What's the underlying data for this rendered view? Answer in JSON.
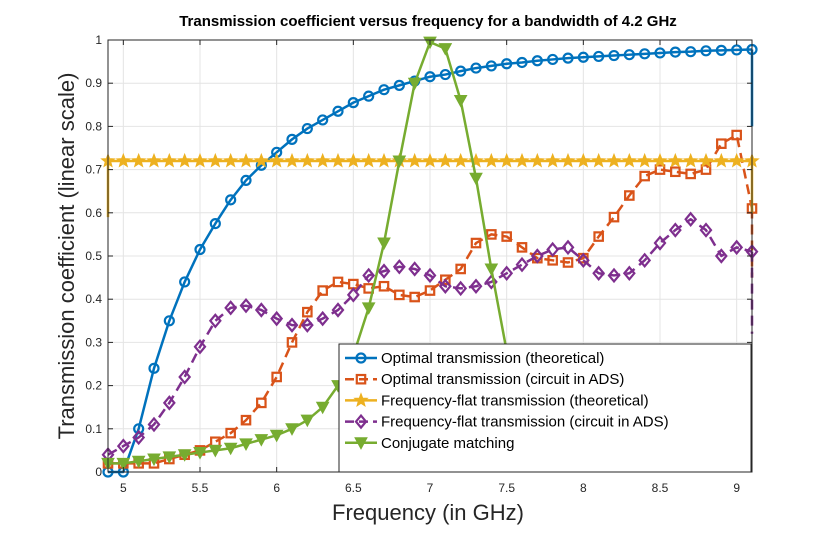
{
  "chart_data": {
    "type": "line",
    "title": "Transmission coefficient versus frequency for a bandwidth of 4.2 GHz",
    "xlabel": "Frequency (in GHz)",
    "ylabel": "Transmission coefficient (linear scale)",
    "xlim": [
      4.9,
      9.1
    ],
    "ylim": [
      0,
      1
    ],
    "xticks": [
      5,
      5.5,
      6,
      6.5,
      7,
      7.5,
      8,
      8.5,
      9
    ],
    "xtick_labels": [
      "5",
      "5.5",
      "6",
      "6.5",
      "7",
      "7.5",
      "8",
      "8.5",
      "9"
    ],
    "yticks": [
      0,
      0.1,
      0.2,
      0.3,
      0.4,
      0.5,
      0.6,
      0.7,
      0.8,
      0.9,
      1
    ],
    "ytick_labels": [
      "0",
      "0.1",
      "0.2",
      "0.3",
      "0.4",
      "0.5",
      "0.6",
      "0.7",
      "0.8",
      "0.9",
      "1"
    ],
    "grid": true,
    "legend_position": "bottom-right",
    "series": [
      {
        "name": "Optimal transmission (theoretical)",
        "color": "#0072BD",
        "marker": "circle",
        "dash": "solid",
        "x": [
          4.9,
          5.0,
          5.1,
          5.2,
          5.3,
          5.4,
          5.5,
          5.6,
          5.7,
          5.8,
          5.9,
          6.0,
          6.1,
          6.2,
          6.3,
          6.4,
          6.5,
          6.6,
          6.7,
          6.8,
          6.9,
          7.0,
          7.1,
          7.2,
          7.3,
          7.4,
          7.5,
          7.6,
          7.7,
          7.8,
          7.9,
          8.0,
          8.1,
          8.2,
          8.3,
          8.4,
          8.5,
          8.6,
          8.7,
          8.8,
          8.9,
          9.0,
          9.1
        ],
        "y": [
          0.0,
          0.0,
          0.1,
          0.24,
          0.35,
          0.44,
          0.515,
          0.575,
          0.63,
          0.675,
          0.71,
          0.74,
          0.77,
          0.795,
          0.815,
          0.835,
          0.855,
          0.87,
          0.885,
          0.895,
          0.905,
          0.915,
          0.92,
          0.928,
          0.935,
          0.94,
          0.945,
          0.948,
          0.952,
          0.955,
          0.958,
          0.96,
          0.962,
          0.964,
          0.966,
          0.968,
          0.97,
          0.972,
          0.973,
          0.975,
          0.976,
          0.977,
          0.978
        ],
        "tail": {
          "x": [
            9.1,
            9.1
          ],
          "y": [
            0.978,
            0.8
          ]
        }
      },
      {
        "name": "Optimal transmission (circuit in ADS)",
        "color": "#D95319",
        "marker": "square",
        "dash": "dashed",
        "x": [
          4.9,
          5.0,
          5.1,
          5.2,
          5.3,
          5.4,
          5.5,
          5.6,
          5.7,
          5.8,
          5.9,
          6.0,
          6.1,
          6.2,
          6.3,
          6.4,
          6.5,
          6.6,
          6.7,
          6.8,
          6.9,
          7.0,
          7.1,
          7.2,
          7.3,
          7.4,
          7.5,
          7.6,
          7.7,
          7.8,
          7.9,
          8.0,
          8.1,
          8.2,
          8.3,
          8.4,
          8.5,
          8.6,
          8.7,
          8.8,
          8.9,
          9.0,
          9.1
        ],
        "y": [
          0.02,
          0.02,
          0.02,
          0.02,
          0.03,
          0.04,
          0.05,
          0.07,
          0.09,
          0.12,
          0.16,
          0.22,
          0.3,
          0.37,
          0.42,
          0.44,
          0.435,
          0.425,
          0.43,
          0.41,
          0.405,
          0.42,
          0.445,
          0.47,
          0.53,
          0.55,
          0.545,
          0.52,
          0.495,
          0.49,
          0.485,
          0.495,
          0.545,
          0.59,
          0.64,
          0.685,
          0.7,
          0.695,
          0.69,
          0.7,
          0.76,
          0.78,
          0.61
        ],
        "tail": {
          "x": [
            9.1,
            9.1
          ],
          "y": [
            0.61,
            0.45
          ]
        }
      },
      {
        "name": "Frequency-flat transmission (theoretical)",
        "color": "#EDB120",
        "marker": "star",
        "dash": "solid",
        "x": [
          4.9,
          5.0,
          5.1,
          5.2,
          5.3,
          5.4,
          5.5,
          5.6,
          5.7,
          5.8,
          5.9,
          6.0,
          6.1,
          6.2,
          6.3,
          6.4,
          6.5,
          6.6,
          6.7,
          6.8,
          6.9,
          7.0,
          7.1,
          7.2,
          7.3,
          7.4,
          7.5,
          7.6,
          7.7,
          7.8,
          7.9,
          8.0,
          8.1,
          8.2,
          8.3,
          8.4,
          8.5,
          8.6,
          8.7,
          8.8,
          8.9,
          9.0,
          9.1
        ],
        "y": [
          0.72,
          0.72,
          0.72,
          0.72,
          0.72,
          0.72,
          0.72,
          0.72,
          0.72,
          0.72,
          0.72,
          0.72,
          0.72,
          0.72,
          0.72,
          0.72,
          0.72,
          0.72,
          0.72,
          0.72,
          0.72,
          0.72,
          0.72,
          0.72,
          0.72,
          0.72,
          0.72,
          0.72,
          0.72,
          0.72,
          0.72,
          0.72,
          0.72,
          0.72,
          0.72,
          0.72,
          0.72,
          0.72,
          0.72,
          0.72,
          0.72,
          0.72,
          0.72
        ],
        "head": {
          "x": [
            4.9,
            4.9
          ],
          "y": [
            0.59,
            0.72
          ]
        },
        "tail": {
          "x": [
            9.1,
            9.1
          ],
          "y": [
            0.72,
            0.6
          ]
        }
      },
      {
        "name": "Frequency-flat transmission (circuit in ADS)",
        "color": "#7E2F8E",
        "marker": "diamond",
        "dash": "dashed",
        "x": [
          4.9,
          5.0,
          5.1,
          5.2,
          5.3,
          5.4,
          5.5,
          5.6,
          5.7,
          5.8,
          5.9,
          6.0,
          6.1,
          6.2,
          6.3,
          6.4,
          6.5,
          6.6,
          6.7,
          6.8,
          6.9,
          7.0,
          7.1,
          7.2,
          7.3,
          7.4,
          7.5,
          7.6,
          7.7,
          7.8,
          7.9,
          8.0,
          8.1,
          8.2,
          8.3,
          8.4,
          8.5,
          8.6,
          8.7,
          8.8,
          8.9,
          9.0,
          9.1
        ],
        "y": [
          0.04,
          0.06,
          0.08,
          0.11,
          0.16,
          0.22,
          0.29,
          0.35,
          0.38,
          0.385,
          0.375,
          0.355,
          0.34,
          0.34,
          0.355,
          0.375,
          0.41,
          0.455,
          0.465,
          0.475,
          0.47,
          0.455,
          0.43,
          0.425,
          0.43,
          0.44,
          0.46,
          0.48,
          0.5,
          0.515,
          0.52,
          0.49,
          0.46,
          0.455,
          0.46,
          0.49,
          0.53,
          0.56,
          0.585,
          0.56,
          0.5,
          0.52,
          0.51
        ],
        "tail": {
          "x": [
            9.1,
            9.1
          ],
          "y": [
            0.51,
            0.32
          ]
        }
      },
      {
        "name": "Conjugate matching",
        "color": "#77AC30",
        "marker": "triangle-down",
        "dash": "solid",
        "x": [
          4.9,
          5.0,
          5.1,
          5.2,
          5.3,
          5.4,
          5.5,
          5.6,
          5.7,
          5.8,
          5.9,
          6.0,
          6.1,
          6.2,
          6.3,
          6.4,
          6.5,
          6.6,
          6.7,
          6.8,
          6.9,
          7.0,
          7.1,
          7.2,
          7.3,
          7.4,
          7.5
        ],
        "y": [
          0.02,
          0.02,
          0.025,
          0.03,
          0.035,
          0.04,
          0.045,
          0.05,
          0.055,
          0.065,
          0.075,
          0.085,
          0.1,
          0.12,
          0.15,
          0.2,
          0.27,
          0.38,
          0.53,
          0.72,
          0.9,
          0.995,
          0.98,
          0.86,
          0.68,
          0.47,
          0.28
        ]
      }
    ]
  }
}
